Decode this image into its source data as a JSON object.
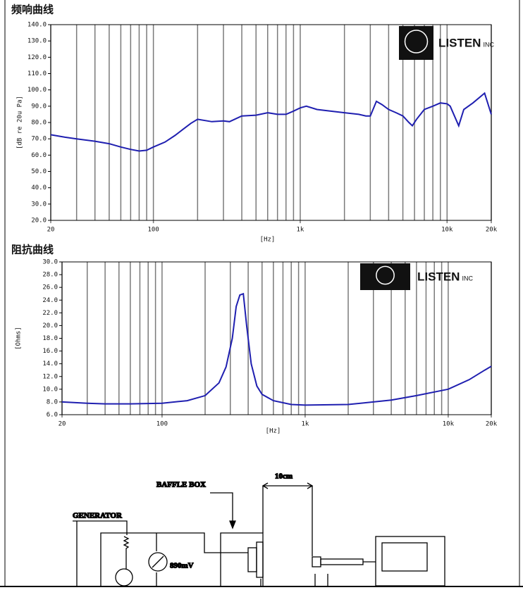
{
  "chart_data": [
    {
      "type": "line",
      "title": "频响曲线",
      "x_label": "[Hz]",
      "y_label": "[dB re 20u Pa]",
      "annotations": [
        "LISTEN",
        "INC"
      ],
      "color": "#1f1fb0",
      "log_x": true,
      "xlim": [
        20,
        20000
      ],
      "xticks": [
        20,
        100,
        {
          "value": 1000,
          "label": "1k"
        },
        {
          "value": 10000,
          "label": "10k"
        },
        {
          "value": 20000,
          "label": "20k"
        }
      ],
      "xminor": [
        30,
        40,
        50,
        60,
        70,
        80,
        90,
        200,
        300,
        400,
        500,
        600,
        700,
        800,
        900,
        2000,
        3000,
        4000,
        5000,
        6000,
        7000,
        8000,
        9000
      ],
      "ylim": [
        20,
        140
      ],
      "yticks": [
        {
          "value": 20,
          "label": "20.0"
        },
        {
          "value": 30,
          "label": "30.0"
        },
        {
          "value": 40,
          "label": "40.0"
        },
        {
          "value": 50,
          "label": "50.0"
        },
        {
          "value": 60,
          "label": "60.0"
        },
        {
          "value": 70,
          "label": "70.0"
        },
        {
          "value": 80,
          "label": "80.0"
        },
        {
          "value": 90,
          "label": "90.0"
        },
        {
          "value": 100,
          "label": "100.0"
        },
        {
          "value": 110,
          "label": "110.0"
        },
        {
          "value": 120,
          "label": "120.0"
        },
        {
          "value": 130,
          "label": "130.0"
        },
        {
          "value": 140,
          "label": "140.0"
        }
      ],
      "x": [
        20,
        25,
        30,
        40,
        50,
        60,
        70,
        80,
        90,
        100,
        120,
        140,
        160,
        180,
        200,
        250,
        300,
        330,
        400,
        500,
        600,
        700,
        800,
        900,
        1000,
        1100,
        1300,
        1600,
        2000,
        2500,
        2800,
        3000,
        3300,
        3600,
        4000,
        4500,
        5000,
        5500,
        5800,
        6200,
        7000,
        8000,
        9000,
        10000,
        10500,
        12000,
        13000,
        15000,
        18000,
        20000
      ],
      "values": [
        72.5,
        71,
        70,
        68.5,
        67,
        65,
        63.5,
        62.5,
        63,
        65,
        68,
        72,
        76,
        79.5,
        82,
        80.5,
        81,
        80.5,
        84,
        84.5,
        86,
        85,
        85,
        87,
        89,
        90,
        88,
        87,
        86,
        85,
        84,
        84,
        93,
        91,
        88,
        86,
        84,
        80,
        78,
        82,
        88,
        90,
        92,
        91.5,
        90,
        78,
        88,
        92,
        98,
        85
      ]
    },
    {
      "type": "line",
      "title": "阻抗曲线",
      "x_label": "[Hz]",
      "y_label": "[Ohms]",
      "annotations": [
        "LISTEN",
        "INC"
      ],
      "color": "#1f1fb0",
      "log_x": true,
      "xlim": [
        20,
        20000
      ],
      "xticks": [
        20,
        100,
        {
          "value": 1000,
          "label": "1k"
        },
        {
          "value": 10000,
          "label": "10k"
        },
        {
          "value": 20000,
          "label": "20k"
        }
      ],
      "xminor": [
        30,
        40,
        50,
        60,
        70,
        80,
        90,
        200,
        300,
        400,
        500,
        600,
        700,
        800,
        900,
        2000,
        3000,
        4000,
        5000,
        6000,
        7000,
        8000,
        9000
      ],
      "ylim": [
        6,
        30
      ],
      "yticks": [
        {
          "value": 6,
          "label": "6.0"
        },
        {
          "value": 8,
          "label": "8.0"
        },
        {
          "value": 10,
          "label": "10.0"
        },
        {
          "value": 12,
          "label": "12.0"
        },
        {
          "value": 14,
          "label": "14.0"
        },
        {
          "value": 16,
          "label": "16.0"
        },
        {
          "value": 18,
          "label": "18.0"
        },
        {
          "value": 20,
          "label": "20.0"
        },
        {
          "value": 22,
          "label": "22.0"
        },
        {
          "value": 24,
          "label": "24.0"
        },
        {
          "value": 26,
          "label": "26.0"
        },
        {
          "value": 28,
          "label": "28.0"
        },
        {
          "value": 30,
          "label": "30.0"
        }
      ],
      "x": [
        20,
        30,
        40,
        60,
        100,
        150,
        200,
        250,
        280,
        310,
        330,
        350,
        370,
        390,
        420,
        460,
        500,
        600,
        800,
        1000,
        2000,
        3000,
        4000,
        6000,
        10000,
        14000,
        18000,
        20000
      ],
      "values": [
        8,
        7.8,
        7.7,
        7.7,
        7.8,
        8.2,
        9,
        11,
        13.5,
        18,
        23,
        24.8,
        25,
        20,
        14,
        10.5,
        9.2,
        8.2,
        7.6,
        7.5,
        7.6,
        8,
        8.3,
        9,
        10,
        11.5,
        13,
        13.6
      ]
    }
  ],
  "diagram": {
    "labels": [
      "BAFFLE BOX",
      "10cm",
      "GENERATOR",
      "890mV"
    ]
  }
}
